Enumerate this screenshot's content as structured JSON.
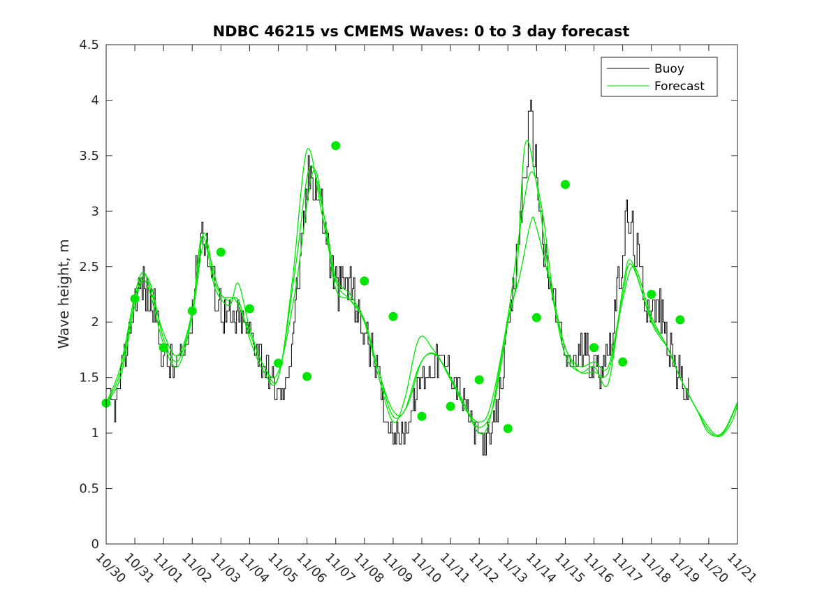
{
  "chart_data": {
    "type": "line",
    "title": "NDBC 46215 vs CMEMS Waves: 0 to 3 day forecast",
    "xlabel": "",
    "ylabel": "Wave height, m",
    "xlim": [
      0,
      22
    ],
    "ylim": [
      0,
      4.5
    ],
    "yticks": [
      0,
      0.5,
      1,
      1.5,
      2,
      2.5,
      3,
      3.5,
      4,
      4.5
    ],
    "ytick_labels": [
      "0",
      "0.5",
      "1",
      "1.5",
      "2",
      "2.5",
      "3",
      "3.5",
      "4",
      "4.5"
    ],
    "xtick_labels": [
      "10/30",
      "10/31",
      "11/01",
      "11/02",
      "11/03",
      "11/04",
      "11/05",
      "11/06",
      "11/07",
      "11/08",
      "11/09",
      "11/10",
      "11/11",
      "11/12",
      "11/13",
      "11/14",
      "11/15",
      "11/16",
      "11/17",
      "11/18",
      "11/19",
      "11/20",
      "11/21"
    ],
    "legend": {
      "position": "top-right",
      "entries": [
        "Buoy",
        "Forecast"
      ]
    },
    "grid": false,
    "colors": {
      "buoy": "#000000",
      "forecast": "#00e600"
    },
    "buoy_envelope": [
      [
        0,
        1.3
      ],
      [
        0.3,
        1.25
      ],
      [
        0.6,
        1.6
      ],
      [
        0.9,
        2.1
      ],
      [
        1.1,
        2.3
      ],
      [
        1.3,
        2.3
      ],
      [
        1.5,
        2.2
      ],
      [
        1.7,
        2.1
      ],
      [
        1.9,
        1.75
      ],
      [
        2.1,
        1.65
      ],
      [
        2.3,
        1.6
      ],
      [
        2.6,
        1.65
      ],
      [
        2.8,
        1.8
      ],
      [
        3.0,
        2.2
      ],
      [
        3.2,
        2.6
      ],
      [
        3.35,
        2.85
      ],
      [
        3.5,
        2.7
      ],
      [
        3.7,
        2.4
      ],
      [
        3.9,
        2.2
      ],
      [
        4.1,
        2.05
      ],
      [
        4.4,
        2.0
      ],
      [
        4.7,
        2.0
      ],
      [
        5.0,
        1.9
      ],
      [
        5.3,
        1.75
      ],
      [
        5.6,
        1.6
      ],
      [
        5.8,
        1.45
      ],
      [
        6.0,
        1.35
      ],
      [
        6.2,
        1.35
      ],
      [
        6.4,
        1.7
      ],
      [
        6.6,
        2.2
      ],
      [
        6.8,
        2.6
      ],
      [
        7.0,
        3.2
      ],
      [
        7.15,
        3.45
      ],
      [
        7.3,
        3.2
      ],
      [
        7.5,
        3.0
      ],
      [
        7.7,
        2.7
      ],
      [
        7.9,
        2.4
      ],
      [
        8.1,
        2.3
      ],
      [
        8.4,
        2.35
      ],
      [
        8.6,
        2.3
      ],
      [
        8.8,
        2.0
      ],
      [
        9.1,
        1.85
      ],
      [
        9.4,
        1.6
      ],
      [
        9.7,
        1.2
      ],
      [
        10.0,
        1.0
      ],
      [
        10.3,
        0.95
      ],
      [
        10.6,
        1.15
      ],
      [
        10.8,
        1.35
      ],
      [
        11.0,
        1.5
      ],
      [
        11.3,
        1.6
      ],
      [
        11.6,
        1.65
      ],
      [
        11.9,
        1.6
      ],
      [
        12.2,
        1.45
      ],
      [
        12.5,
        1.25
      ],
      [
        12.8,
        1.05
      ],
      [
        13.1,
        0.95
      ],
      [
        13.4,
        0.95
      ],
      [
        13.6,
        1.2
      ],
      [
        13.8,
        1.6
      ],
      [
        14.0,
        1.9
      ],
      [
        14.2,
        2.3
      ],
      [
        14.4,
        2.9
      ],
      [
        14.6,
        3.4
      ],
      [
        14.75,
        3.8
      ],
      [
        14.9,
        3.6
      ],
      [
        15.1,
        3.1
      ],
      [
        15.3,
        2.5
      ],
      [
        15.5,
        2.3
      ],
      [
        15.7,
        2.1
      ],
      [
        15.9,
        1.75
      ],
      [
        16.1,
        1.6
      ],
      [
        16.4,
        1.7
      ],
      [
        16.7,
        1.75
      ],
      [
        17.0,
        1.6
      ],
      [
        17.3,
        1.6
      ],
      [
        17.6,
        1.9
      ],
      [
        17.9,
        2.4
      ],
      [
        18.1,
        2.9
      ],
      [
        18.3,
        2.8
      ],
      [
        18.5,
        2.6
      ],
      [
        18.7,
        2.3
      ],
      [
        19.0,
        2.1
      ],
      [
        19.3,
        2.1
      ],
      [
        19.6,
        1.75
      ],
      [
        19.9,
        1.55
      ],
      [
        20.1,
        1.45
      ],
      [
        20.3,
        1.35
      ]
    ],
    "forecast_series": [
      {
        "name": "Forecast",
        "points": [
          [
            0,
            1.27
          ],
          [
            0.5,
            1.55
          ],
          [
            1.0,
            2.2
          ],
          [
            1.3,
            2.42
          ],
          [
            1.6,
            2.3
          ],
          [
            2.0,
            1.85
          ],
          [
            2.5,
            1.65
          ],
          [
            3.0,
            2.1
          ],
          [
            3.3,
            2.75
          ],
          [
            3.6,
            2.6
          ],
          [
            4.0,
            2.25
          ],
          [
            4.5,
            2.2
          ],
          [
            5.0,
            1.9
          ],
          [
            5.5,
            1.6
          ],
          [
            6.0,
            1.5
          ],
          [
            6.5,
            2.4
          ],
          [
            7.0,
            3.55
          ],
          [
            7.5,
            3.0
          ],
          [
            8.0,
            2.37
          ],
          [
            8.5,
            2.2
          ],
          [
            9.0,
            2.0
          ],
          [
            9.5,
            1.55
          ],
          [
            10.0,
            1.15
          ],
          [
            10.5,
            1.25
          ],
          [
            11.0,
            1.65
          ],
          [
            11.5,
            1.7
          ],
          [
            12.0,
            1.48
          ],
          [
            12.5,
            1.25
          ],
          [
            13.0,
            1.05
          ],
          [
            13.5,
            1.25
          ],
          [
            14.0,
            2.0
          ],
          [
            14.3,
            2.4
          ],
          [
            14.6,
            3.6
          ],
          [
            15.0,
            3.24
          ],
          [
            15.5,
            2.3
          ],
          [
            16.0,
            1.77
          ],
          [
            16.5,
            1.6
          ],
          [
            17.0,
            1.64
          ],
          [
            17.5,
            1.6
          ],
          [
            18.0,
            2.25
          ],
          [
            18.3,
            2.52
          ],
          [
            19.0,
            2.02
          ],
          [
            19.5,
            1.8
          ],
          [
            20.0,
            1.5
          ],
          [
            20.5,
            1.25
          ],
          [
            21.0,
            1.05
          ],
          [
            21.3,
            0.98
          ],
          [
            21.6,
            1.05
          ],
          [
            22.0,
            1.28
          ]
        ]
      },
      {
        "name": "",
        "points": [
          [
            0,
            1.27
          ],
          [
            0.5,
            1.6
          ],
          [
            1.0,
            2.25
          ],
          [
            1.3,
            2.45
          ],
          [
            1.6,
            2.25
          ],
          [
            2.0,
            1.9
          ],
          [
            2.5,
            1.7
          ],
          [
            3.0,
            2.1
          ],
          [
            3.4,
            2.8
          ],
          [
            3.8,
            2.35
          ],
          [
            4.2,
            2.2
          ],
          [
            4.6,
            2.2
          ],
          [
            5.0,
            1.85
          ],
          [
            5.5,
            1.55
          ],
          [
            6.0,
            1.5
          ],
          [
            6.6,
            2.5
          ],
          [
            7.1,
            3.4
          ],
          [
            7.6,
            2.95
          ],
          [
            8.0,
            2.4
          ],
          [
            8.5,
            2.25
          ],
          [
            9.0,
            2.0
          ],
          [
            9.5,
            1.5
          ],
          [
            10.0,
            1.1
          ],
          [
            10.4,
            1.3
          ],
          [
            10.9,
            1.85
          ],
          [
            11.4,
            1.75
          ],
          [
            12.0,
            1.5
          ],
          [
            12.5,
            1.22
          ],
          [
            13.0,
            1.1
          ],
          [
            13.4,
            1.25
          ],
          [
            14.0,
            2.05
          ],
          [
            14.4,
            2.8
          ],
          [
            14.8,
            3.35
          ],
          [
            15.2,
            3.0
          ],
          [
            15.6,
            2.2
          ],
          [
            16.0,
            1.7
          ],
          [
            16.5,
            1.55
          ],
          [
            17.0,
            1.55
          ],
          [
            17.5,
            1.55
          ],
          [
            18.0,
            2.2
          ],
          [
            18.4,
            2.5
          ],
          [
            19.0,
            2.05
          ],
          [
            19.6,
            1.75
          ],
          [
            20.0,
            1.5
          ],
          [
            20.6,
            1.2
          ],
          [
            21.0,
            1.02
          ],
          [
            21.4,
            0.97
          ],
          [
            21.8,
            1.1
          ],
          [
            22.0,
            1.25
          ]
        ]
      },
      {
        "name": "",
        "points": [
          [
            0,
            1.27
          ],
          [
            0.5,
            1.5
          ],
          [
            1.0,
            2.15
          ],
          [
            1.3,
            2.38
          ],
          [
            1.6,
            2.2
          ],
          [
            2.0,
            1.8
          ],
          [
            2.5,
            1.6
          ],
          [
            3.0,
            2.05
          ],
          [
            3.4,
            2.7
          ],
          [
            3.8,
            2.3
          ],
          [
            4.3,
            2.15
          ],
          [
            4.6,
            2.35
          ],
          [
            5.0,
            1.95
          ],
          [
            5.5,
            1.6
          ],
          [
            6.0,
            1.55
          ],
          [
            6.6,
            2.3
          ],
          [
            7.2,
            3.35
          ],
          [
            7.6,
            2.95
          ],
          [
            8.0,
            2.3
          ],
          [
            8.5,
            2.2
          ],
          [
            9.0,
            2.02
          ],
          [
            9.5,
            1.55
          ],
          [
            10.0,
            1.2
          ],
          [
            10.4,
            1.2
          ],
          [
            10.9,
            1.6
          ],
          [
            11.4,
            1.72
          ],
          [
            12.0,
            1.5
          ],
          [
            12.5,
            1.25
          ],
          [
            13.0,
            1.0
          ],
          [
            13.4,
            1.15
          ],
          [
            14.0,
            2.02
          ],
          [
            14.4,
            2.4
          ],
          [
            14.8,
            2.9
          ],
          [
            15.0,
            2.85
          ],
          [
            15.6,
            2.2
          ],
          [
            16.0,
            1.77
          ],
          [
            16.5,
            1.55
          ],
          [
            17.0,
            1.6
          ],
          [
            17.5,
            1.45
          ],
          [
            18.0,
            2.3
          ],
          [
            18.3,
            2.55
          ],
          [
            19.0,
            2.0
          ],
          [
            19.6,
            1.75
          ],
          [
            20.0,
            1.5
          ],
          [
            20.6,
            1.2
          ],
          [
            21.0,
            1.0
          ],
          [
            21.5,
            1.0
          ],
          [
            22.0,
            1.27
          ]
        ]
      }
    ],
    "forecast_markers": [
      [
        0,
        1.27
      ],
      [
        1,
        2.21
      ],
      [
        2,
        1.77
      ],
      [
        3,
        2.1
      ],
      [
        4,
        2.63
      ],
      [
        5,
        2.12
      ],
      [
        6,
        1.63
      ],
      [
        7,
        1.51
      ],
      [
        8,
        3.59
      ],
      [
        9,
        2.37
      ],
      [
        10,
        2.05
      ],
      [
        11,
        1.15
      ],
      [
        12,
        1.24
      ],
      [
        13,
        1.48
      ],
      [
        14,
        1.04
      ],
      [
        15,
        2.04
      ],
      [
        16,
        3.24
      ],
      [
        17,
        1.77
      ],
      [
        18,
        1.64
      ],
      [
        19,
        2.25
      ],
      [
        20,
        2.02
      ]
    ]
  }
}
